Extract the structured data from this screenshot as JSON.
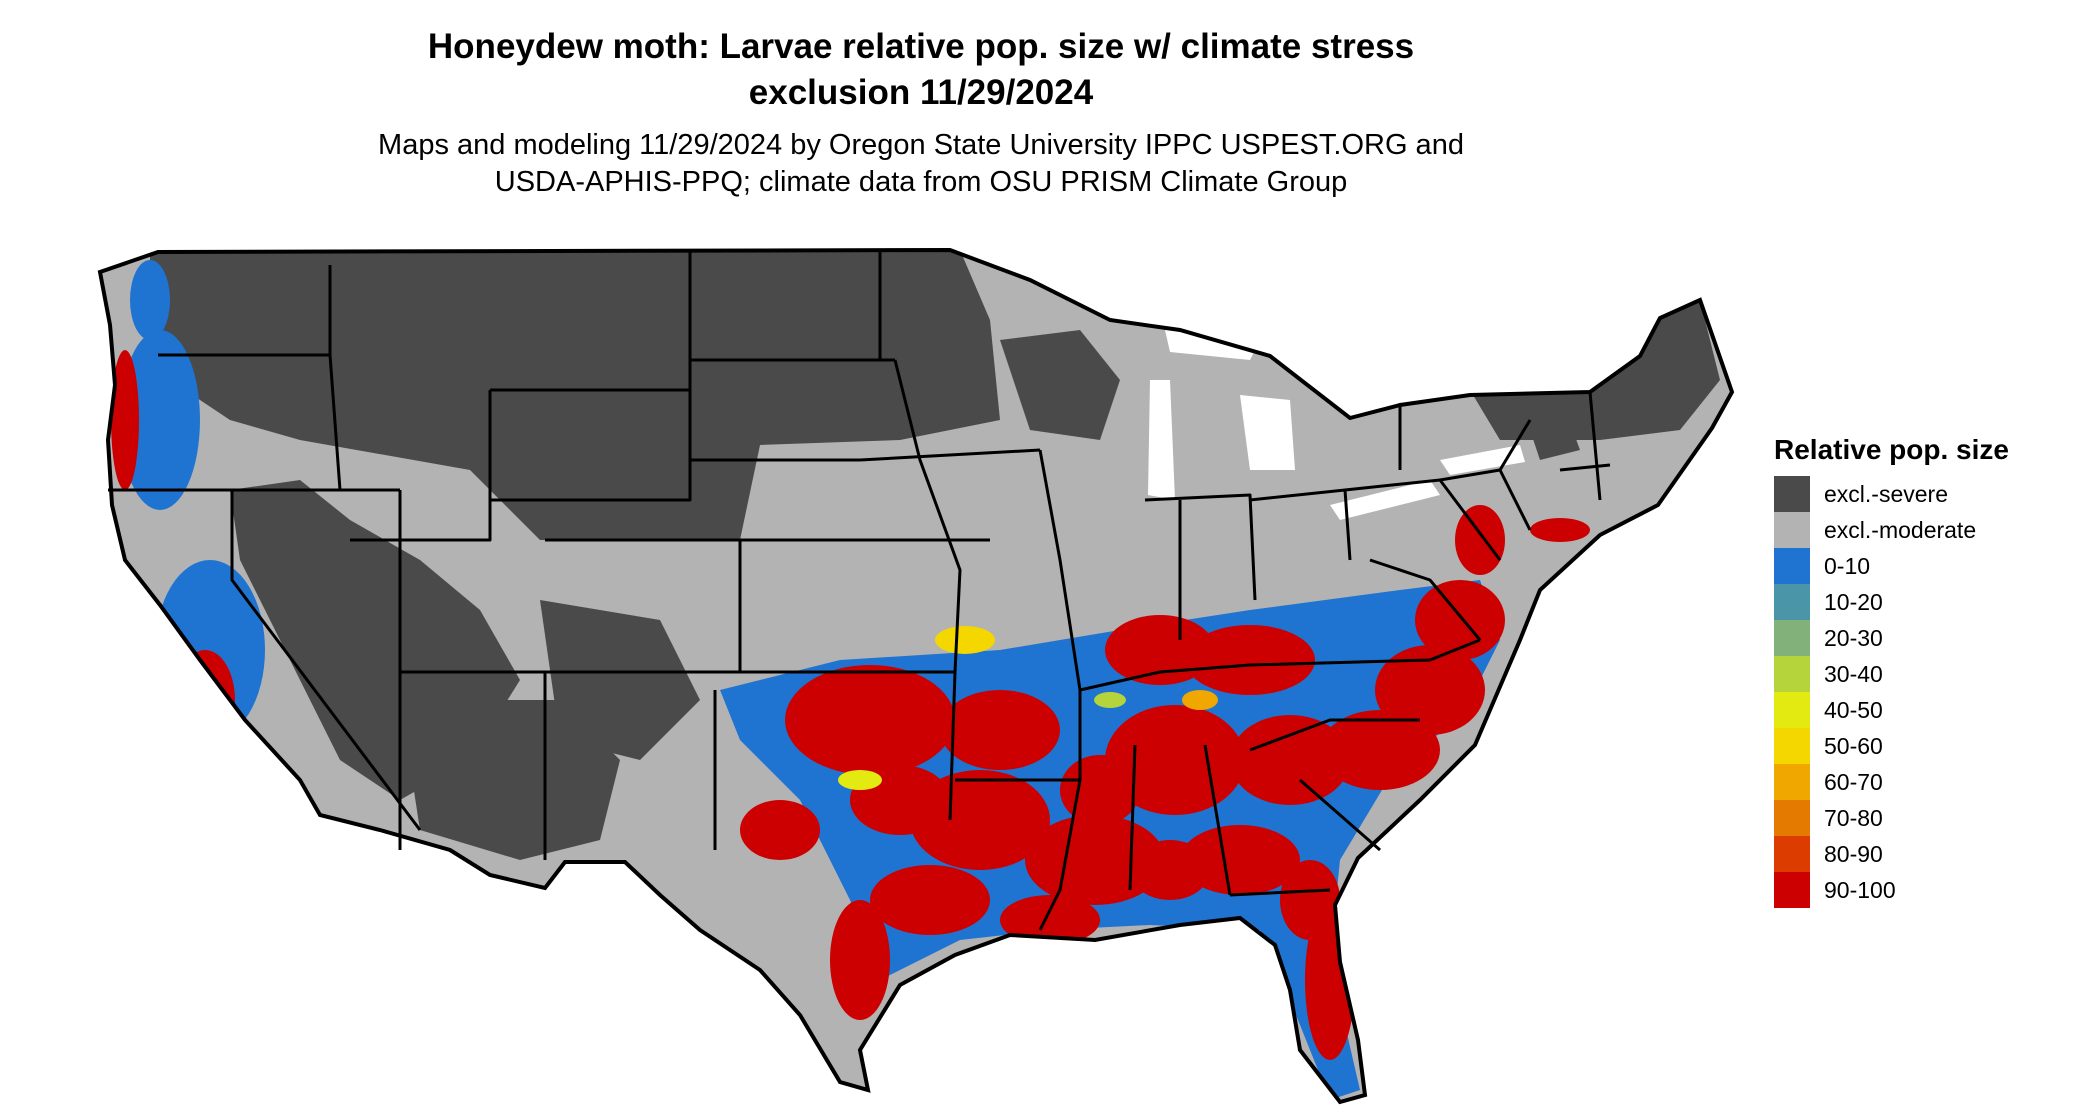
{
  "map": {
    "title_line1": "Honeydew moth: Larvae relative pop. size w/ climate stress",
    "title_line2": "exclusion 11/29/2024",
    "subtitle_line1": "Maps and modeling 11/29/2024 by Oregon State University IPPC USPEST.ORG and",
    "subtitle_line2": "USDA-APHIS-PPQ; climate data from OSU PRISM Climate Group"
  },
  "legend": {
    "title": "Relative pop. size",
    "items": [
      {
        "label": "excl.-severe",
        "color": "#4a4a4a"
      },
      {
        "label": "excl.-moderate",
        "color": "#b3b3b3"
      },
      {
        "label": "0-10",
        "color": "#1f74d1"
      },
      {
        "label": "10-20",
        "color": "#4a95a8"
      },
      {
        "label": "20-30",
        "color": "#82b27a"
      },
      {
        "label": "30-40",
        "color": "#b5d43c"
      },
      {
        "label": "40-50",
        "color": "#e2ea12"
      },
      {
        "label": "50-60",
        "color": "#f5d700"
      },
      {
        "label": "60-70",
        "color": "#f0a800"
      },
      {
        "label": "70-80",
        "color": "#e57a00"
      },
      {
        "label": "80-90",
        "color": "#dc3c00"
      },
      {
        "label": "90-100",
        "color": "#cc0000"
      }
    ]
  },
  "colors": {
    "state_border": "#000000",
    "water": "#ffffff"
  }
}
